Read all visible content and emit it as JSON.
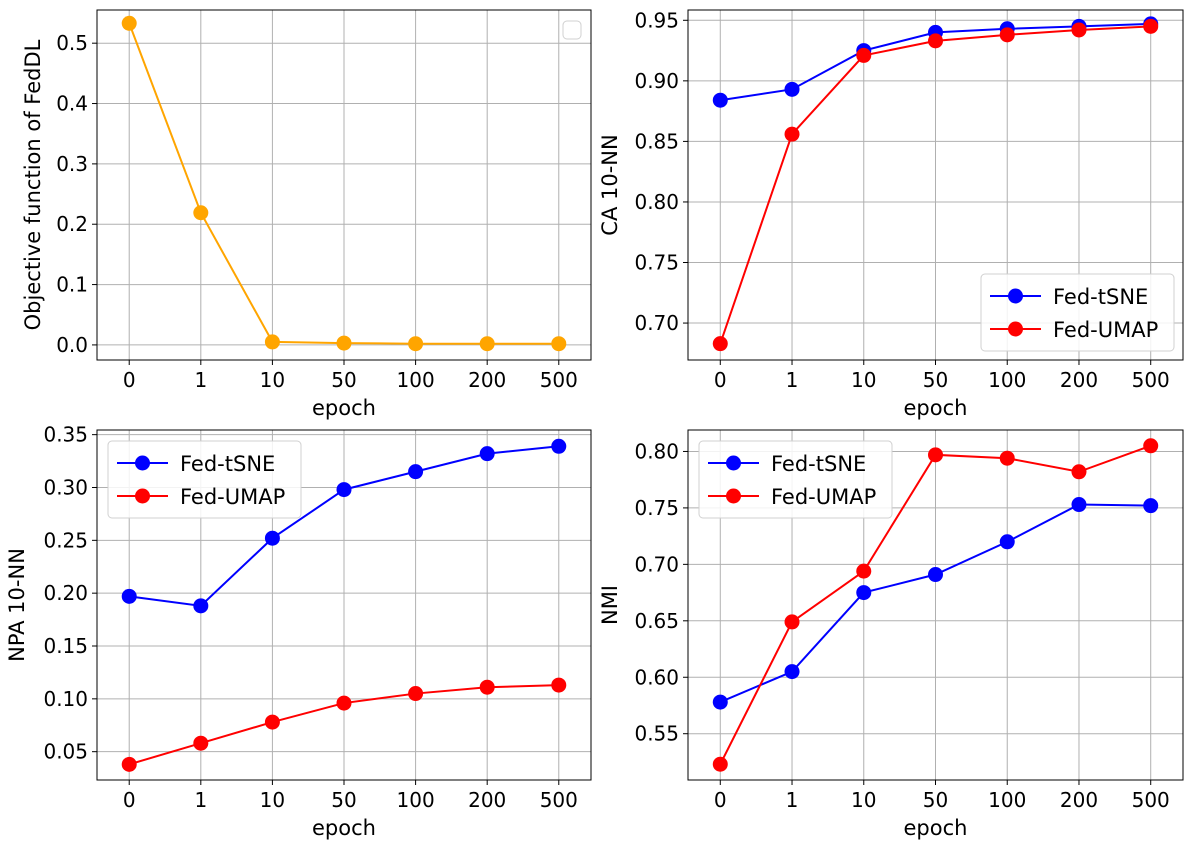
{
  "chart_data": [
    {
      "type": "line",
      "categories": [
        "0",
        "1",
        "10",
        "50",
        "100",
        "200",
        "500"
      ],
      "xlabel": "epoch",
      "ylabel": "Objective function of FedDL",
      "ylim": [
        -0.025,
        0.555
      ],
      "yticks": [
        "0.0",
        "0.1",
        "0.2",
        "0.3",
        "0.4",
        "0.5"
      ],
      "ytick_values": [
        0.0,
        0.1,
        0.2,
        0.3,
        0.4,
        0.5
      ],
      "grid": true,
      "legend": {
        "position": "upper-right",
        "entries": []
      },
      "series": [
        {
          "name": "",
          "color": "#FFA500",
          "values": [
            0.533,
            0.219,
            0.005,
            0.003,
            0.002,
            0.002,
            0.002
          ]
        }
      ]
    },
    {
      "type": "line",
      "categories": [
        "0",
        "1",
        "10",
        "50",
        "100",
        "200",
        "500"
      ],
      "xlabel": "epoch",
      "ylabel": "CA 10-NN",
      "ylim": [
        0.6695,
        0.9585
      ],
      "yticks": [
        "0.70",
        "0.75",
        "0.80",
        "0.85",
        "0.90",
        "0.95"
      ],
      "ytick_values": [
        0.7,
        0.75,
        0.8,
        0.85,
        0.9,
        0.95
      ],
      "grid": true,
      "legend": {
        "position": "lower-right",
        "entries": [
          "Fed-tSNE",
          "Fed-UMAP"
        ]
      },
      "series": [
        {
          "name": "Fed-tSNE",
          "color": "#0000FF",
          "values": [
            0.884,
            0.893,
            0.925,
            0.94,
            0.943,
            0.945,
            0.947
          ]
        },
        {
          "name": "Fed-UMAP",
          "color": "#FF0000",
          "values": [
            0.683,
            0.856,
            0.921,
            0.933,
            0.938,
            0.942,
            0.945
          ]
        }
      ]
    },
    {
      "type": "line",
      "categories": [
        "0",
        "1",
        "10",
        "50",
        "100",
        "200",
        "500"
      ],
      "xlabel": "epoch",
      "ylabel": "NPA 10-NN",
      "ylim": [
        0.0232,
        0.3544
      ],
      "yticks": [
        "0.05",
        "0.10",
        "0.15",
        "0.20",
        "0.25",
        "0.30",
        "0.35"
      ],
      "ytick_values": [
        0.05,
        0.1,
        0.15,
        0.2,
        0.25,
        0.3,
        0.35
      ],
      "grid": true,
      "legend": {
        "position": "upper-left",
        "entries": [
          "Fed-tSNE",
          "Fed-UMAP"
        ]
      },
      "series": [
        {
          "name": "Fed-tSNE",
          "color": "#0000FF",
          "values": [
            0.197,
            0.188,
            0.252,
            0.298,
            0.315,
            0.332,
            0.339
          ]
        },
        {
          "name": "Fed-UMAP",
          "color": "#FF0000",
          "values": [
            0.038,
            0.058,
            0.078,
            0.096,
            0.105,
            0.111,
            0.113
          ]
        }
      ]
    },
    {
      "type": "line",
      "categories": [
        "0",
        "1",
        "10",
        "50",
        "100",
        "200",
        "500"
      ],
      "xlabel": "epoch",
      "ylabel": "NMI",
      "ylim": [
        0.509,
        0.819
      ],
      "yticks": [
        "0.55",
        "0.60",
        "0.65",
        "0.70",
        "0.75",
        "0.80"
      ],
      "ytick_values": [
        0.55,
        0.6,
        0.65,
        0.7,
        0.75,
        0.8
      ],
      "grid": true,
      "legend": {
        "position": "upper-left",
        "entries": [
          "Fed-tSNE",
          "Fed-UMAP"
        ]
      },
      "series": [
        {
          "name": "Fed-tSNE",
          "color": "#0000FF",
          "values": [
            0.578,
            0.605,
            0.675,
            0.691,
            0.72,
            0.753,
            0.752
          ]
        },
        {
          "name": "Fed-UMAP",
          "color": "#FF0000",
          "values": [
            0.523,
            0.649,
            0.694,
            0.797,
            0.794,
            0.782,
            0.805
          ]
        }
      ]
    }
  ]
}
